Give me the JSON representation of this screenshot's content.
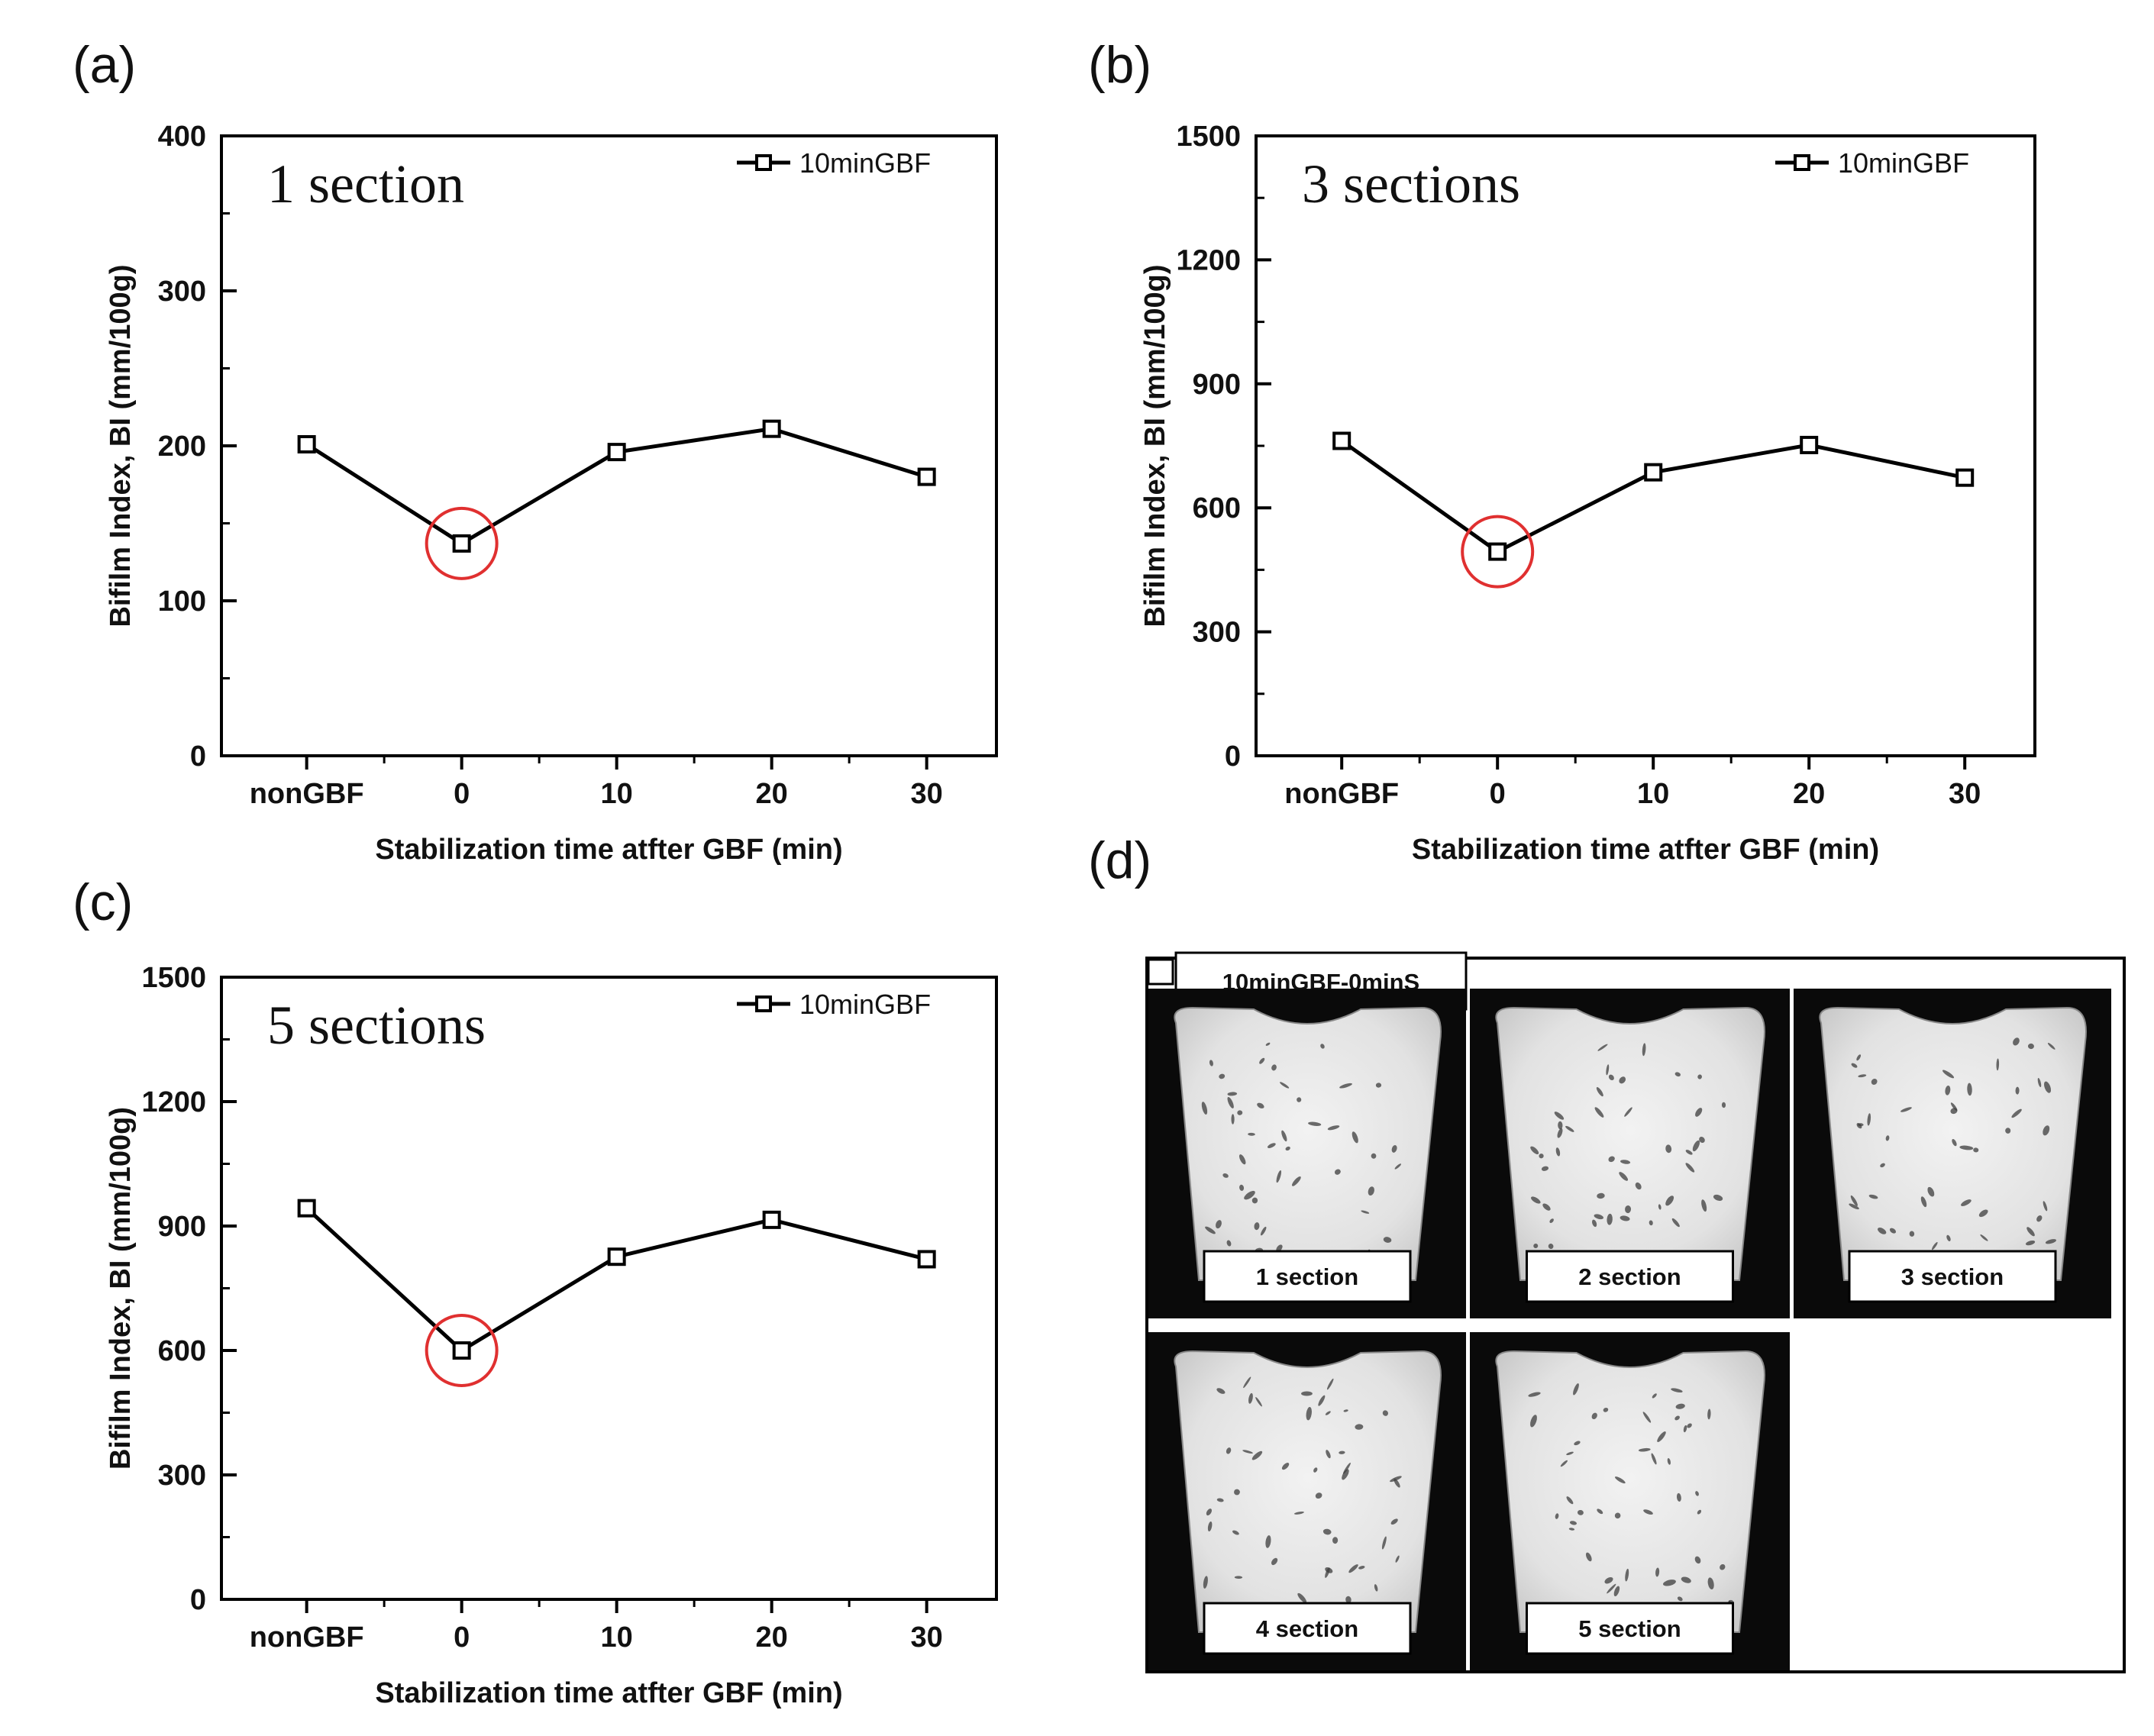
{
  "charts": [
    {
      "panel_label": "(a)",
      "annotation": "1 section",
      "chart_data": {
        "type": "line",
        "categories": [
          "nonGBF",
          "0",
          "10",
          "20",
          "30"
        ],
        "series": [
          {
            "name": "10minGBF",
            "values": [
              201,
              137,
              196,
              211,
              180
            ],
            "marker": "open-square",
            "color": "#000000"
          }
        ],
        "xlabel": "Stabilization time atfter GBF (min)",
        "ylabel": "Bifilm Index, BI (mm/100g)",
        "ylim": [
          0,
          400
        ],
        "yticks": [
          0,
          100,
          200,
          300,
          400
        ],
        "highlight": {
          "category": "0",
          "shape": "circle",
          "color": "#e03030"
        },
        "legend_position": "top-right",
        "grid": false
      }
    },
    {
      "panel_label": "(b)",
      "annotation": "3 sections",
      "chart_data": {
        "type": "line",
        "categories": [
          "nonGBF",
          "0",
          "10",
          "20",
          "30"
        ],
        "series": [
          {
            "name": "10minGBF",
            "values": [
              762,
              494,
              686,
              752,
              673
            ],
            "marker": "open-square",
            "color": "#000000"
          }
        ],
        "xlabel": "Stabilization time atfter GBF (min)",
        "ylabel": "Bifilm Index, BI (mm/100g)",
        "ylim": [
          0,
          1500
        ],
        "yticks": [
          0,
          300,
          600,
          900,
          1200,
          1500
        ],
        "highlight": {
          "category": "0",
          "shape": "circle",
          "color": "#e03030"
        },
        "legend_position": "top-right",
        "grid": false
      }
    },
    {
      "panel_label": "(c)",
      "annotation": "5 sections",
      "chart_data": {
        "type": "line",
        "categories": [
          "nonGBF",
          "0",
          "10",
          "20",
          "30"
        ],
        "series": [
          {
            "name": "10minGBF",
            "values": [
              943,
              600,
              826,
              915,
              820
            ],
            "marker": "open-square",
            "color": "#000000"
          }
        ],
        "xlabel": "Stabilization time atfter GBF (min)",
        "ylabel": "Bifilm Index, BI (mm/100g)",
        "ylim": [
          0,
          1500
        ],
        "yticks": [
          0,
          300,
          600,
          900,
          1200,
          1500
        ],
        "highlight": {
          "category": "0",
          "shape": "circle",
          "color": "#e03030"
        },
        "legend_position": "top-right",
        "grid": false
      }
    }
  ],
  "photo_panel": {
    "panel_label": "(d)",
    "header": "10minGBF-0minS",
    "sections": [
      "1 section",
      "2 section",
      "3 section",
      "4 section",
      "5 section"
    ]
  }
}
